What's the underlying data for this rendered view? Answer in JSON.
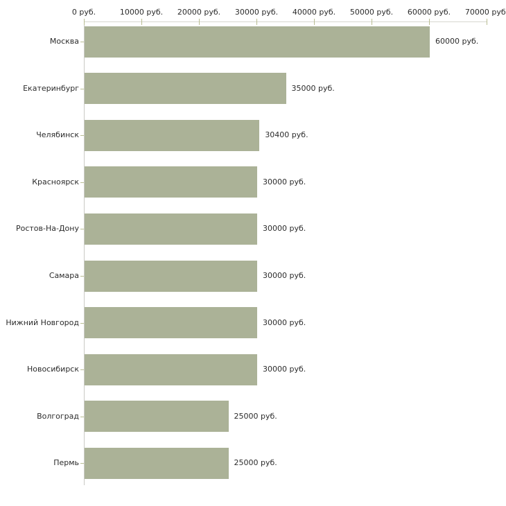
{
  "chart_data": {
    "type": "bar",
    "orientation": "horizontal",
    "title": "",
    "xlabel": "",
    "ylabel": "",
    "unit": "руб.",
    "xlim": [
      0,
      70000
    ],
    "grid": false,
    "legend": null,
    "categories": [
      "Москва",
      "Екатеринбург",
      "Челябинск",
      "Красноярск",
      "Ростов-На-Дону",
      "Самара",
      "Нижний Новгород",
      "Новосибирск",
      "Волгоград",
      "Пермь"
    ],
    "values": [
      60000,
      35000,
      30400,
      30000,
      30000,
      30000,
      30000,
      30000,
      25000,
      25000
    ],
    "value_labels": [
      "60000 руб.",
      "35000 руб.",
      "30400 руб.",
      "30000 руб.",
      "30000 руб.",
      "30000 руб.",
      "30000 руб.",
      "30000 руб.",
      "25000 руб.",
      "25000 руб."
    ],
    "x_tick_values": [
      0,
      10000,
      20000,
      30000,
      40000,
      50000,
      60000,
      70000
    ],
    "x_tick_labels": [
      "0 руб.",
      "10000 руб.",
      "20000 руб.",
      "30000 руб.",
      "40000 руб.",
      "50000 руб.",
      "60000 руб.",
      "70000 руб."
    ],
    "colors": {
      "bar": "#abb297",
      "axis_line": "#d6d6cf",
      "tick_mark": "#b9bd92",
      "text": "#2b2b2b",
      "background": "#ffffff"
    }
  }
}
